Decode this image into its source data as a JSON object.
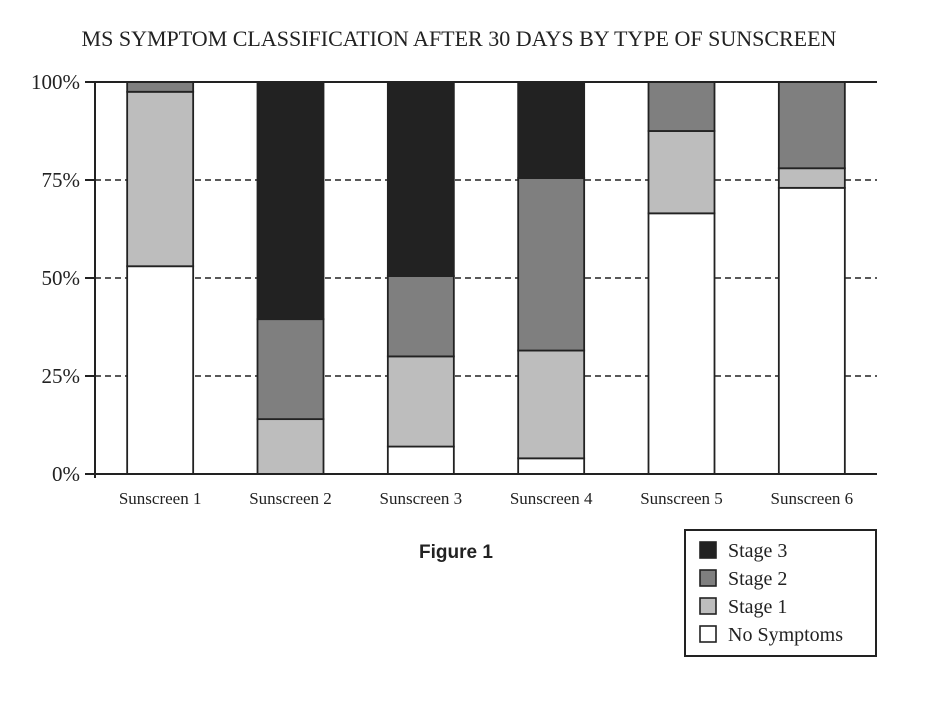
{
  "chart_data": {
    "type": "bar",
    "stacked": true,
    "title": "MS SYMPTOM CLASSIFICATION AFTER 30 DAYS BY TYPE OF SUNSCREEN",
    "caption": "Figure 1",
    "xlabel": "",
    "ylabel": "",
    "ylim": [
      0,
      100
    ],
    "yticks": [
      "0%",
      "25%",
      "50%",
      "75%",
      "100%"
    ],
    "ytick_values": [
      0,
      25,
      50,
      75,
      100
    ],
    "grid": "dashed horizontal at 25%, 50%, 75%",
    "legend_position": "bottom-right",
    "categories": [
      "Sunscreen 1",
      "Sunscreen 2",
      "Sunscreen 3",
      "Sunscreen 4",
      "Sunscreen 5",
      "Sunscreen 6"
    ],
    "series": [
      {
        "name": "No Symptoms",
        "color": "#ffffff",
        "values": [
          53,
          0,
          7,
          4,
          66.5,
          73
        ]
      },
      {
        "name": "Stage 1",
        "color": "#bdbdbd",
        "values": [
          44.5,
          14,
          23,
          27.5,
          21,
          5
        ]
      },
      {
        "name": "Stage 2",
        "color": "#7f7f7f",
        "values": [
          2.5,
          25.5,
          20.5,
          44,
          12.5,
          22
        ]
      },
      {
        "name": "Stage 3",
        "color": "#222222",
        "values": [
          0,
          60.5,
          49.5,
          24.5,
          0,
          0
        ]
      }
    ],
    "legend_order": [
      "Stage 3",
      "Stage 2",
      "Stage 1",
      "No Symptoms"
    ]
  }
}
